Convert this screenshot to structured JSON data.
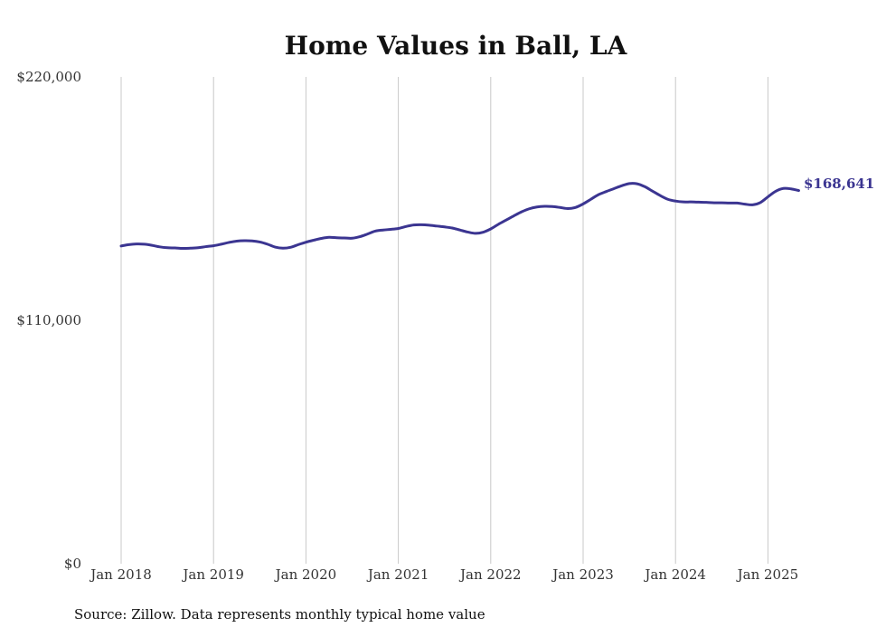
{
  "chart_data": {
    "type": "line",
    "title": "Home Values in Ball, LA",
    "xlabel": "",
    "ylabel": "",
    "ylim": [
      0,
      220000
    ],
    "y_ticks": [
      {
        "value": 0,
        "label": "$0"
      },
      {
        "value": 110000,
        "label": "$110,000"
      },
      {
        "value": 220000,
        "label": "$220,000"
      }
    ],
    "x_ticks": [
      {
        "date": "2018-01",
        "label": "Jan 2018"
      },
      {
        "date": "2019-01",
        "label": "Jan 2019"
      },
      {
        "date": "2020-01",
        "label": "Jan 2020"
      },
      {
        "date": "2021-01",
        "label": "Jan 2021"
      },
      {
        "date": "2022-01",
        "label": "Jan 2022"
      },
      {
        "date": "2023-01",
        "label": "Jan 2023"
      },
      {
        "date": "2024-01",
        "label": "Jan 2024"
      },
      {
        "date": "2025-01",
        "label": "Jan 2025"
      }
    ],
    "grid": "vertical",
    "line_color": "#3b3591",
    "end_label": "$168,641",
    "source": "Source: Zillow. Data represents monthly typical home value",
    "series": [
      {
        "points": [
          [
            "2018-01",
            143600
          ],
          [
            "2018-02",
            144200
          ],
          [
            "2018-03",
            144500
          ],
          [
            "2018-04",
            144400
          ],
          [
            "2018-05",
            143900
          ],
          [
            "2018-06",
            143200
          ],
          [
            "2018-07",
            142800
          ],
          [
            "2018-08",
            142700
          ],
          [
            "2018-09",
            142500
          ],
          [
            "2018-10",
            142600
          ],
          [
            "2018-11",
            142800
          ],
          [
            "2018-12",
            143300
          ],
          [
            "2019-01",
            143700
          ],
          [
            "2019-02",
            144400
          ],
          [
            "2019-03",
            145200
          ],
          [
            "2019-04",
            145800
          ],
          [
            "2019-05",
            146000
          ],
          [
            "2019-06",
            145900
          ],
          [
            "2019-07",
            145400
          ],
          [
            "2019-08",
            144400
          ],
          [
            "2019-09",
            143100
          ],
          [
            "2019-10",
            142600
          ],
          [
            "2019-11",
            143000
          ],
          [
            "2019-12",
            144200
          ],
          [
            "2020-01",
            145300
          ],
          [
            "2020-02",
            146200
          ],
          [
            "2020-03",
            147000
          ],
          [
            "2020-04",
            147500
          ],
          [
            "2020-05",
            147300
          ],
          [
            "2020-06",
            147200
          ],
          [
            "2020-07",
            147100
          ],
          [
            "2020-08",
            147800
          ],
          [
            "2020-09",
            149000
          ],
          [
            "2020-10",
            150300
          ],
          [
            "2020-11",
            150800
          ],
          [
            "2020-12",
            151100
          ],
          [
            "2021-01",
            151500
          ],
          [
            "2021-02",
            152400
          ],
          [
            "2021-03",
            153100
          ],
          [
            "2021-04",
            153200
          ],
          [
            "2021-05",
            153000
          ],
          [
            "2021-06",
            152600
          ],
          [
            "2021-07",
            152200
          ],
          [
            "2021-08",
            151700
          ],
          [
            "2021-09",
            150800
          ],
          [
            "2021-10",
            149900
          ],
          [
            "2021-11",
            149300
          ],
          [
            "2021-12",
            149800
          ],
          [
            "2022-01",
            151300
          ],
          [
            "2022-02",
            153400
          ],
          [
            "2022-03",
            155300
          ],
          [
            "2022-04",
            157200
          ],
          [
            "2022-05",
            159000
          ],
          [
            "2022-06",
            160400
          ],
          [
            "2022-07",
            161200
          ],
          [
            "2022-08",
            161500
          ],
          [
            "2022-09",
            161400
          ],
          [
            "2022-10",
            161000
          ],
          [
            "2022-11",
            160500
          ],
          [
            "2022-12",
            161000
          ],
          [
            "2023-01",
            162600
          ],
          [
            "2023-02",
            164700
          ],
          [
            "2023-03",
            166800
          ],
          [
            "2023-04",
            168200
          ],
          [
            "2023-05",
            169500
          ],
          [
            "2023-06",
            170800
          ],
          [
            "2023-07",
            171800
          ],
          [
            "2023-08",
            171700
          ],
          [
            "2023-09",
            170400
          ],
          [
            "2023-10",
            168400
          ],
          [
            "2023-11",
            166400
          ],
          [
            "2023-12",
            164700
          ],
          [
            "2024-01",
            163900
          ],
          [
            "2024-02",
            163500
          ],
          [
            "2024-03",
            163500
          ],
          [
            "2024-04",
            163400
          ],
          [
            "2024-05",
            163300
          ],
          [
            "2024-06",
            163100
          ],
          [
            "2024-07",
            163100
          ],
          [
            "2024-08",
            163000
          ],
          [
            "2024-09",
            163000
          ],
          [
            "2024-10",
            162500
          ],
          [
            "2024-11",
            162200
          ],
          [
            "2024-12",
            163200
          ],
          [
            "2025-01",
            165800
          ],
          [
            "2025-02",
            168300
          ],
          [
            "2025-03",
            169600
          ],
          [
            "2025-04",
            169400
          ],
          [
            "2025-05",
            168641
          ]
        ]
      }
    ]
  }
}
